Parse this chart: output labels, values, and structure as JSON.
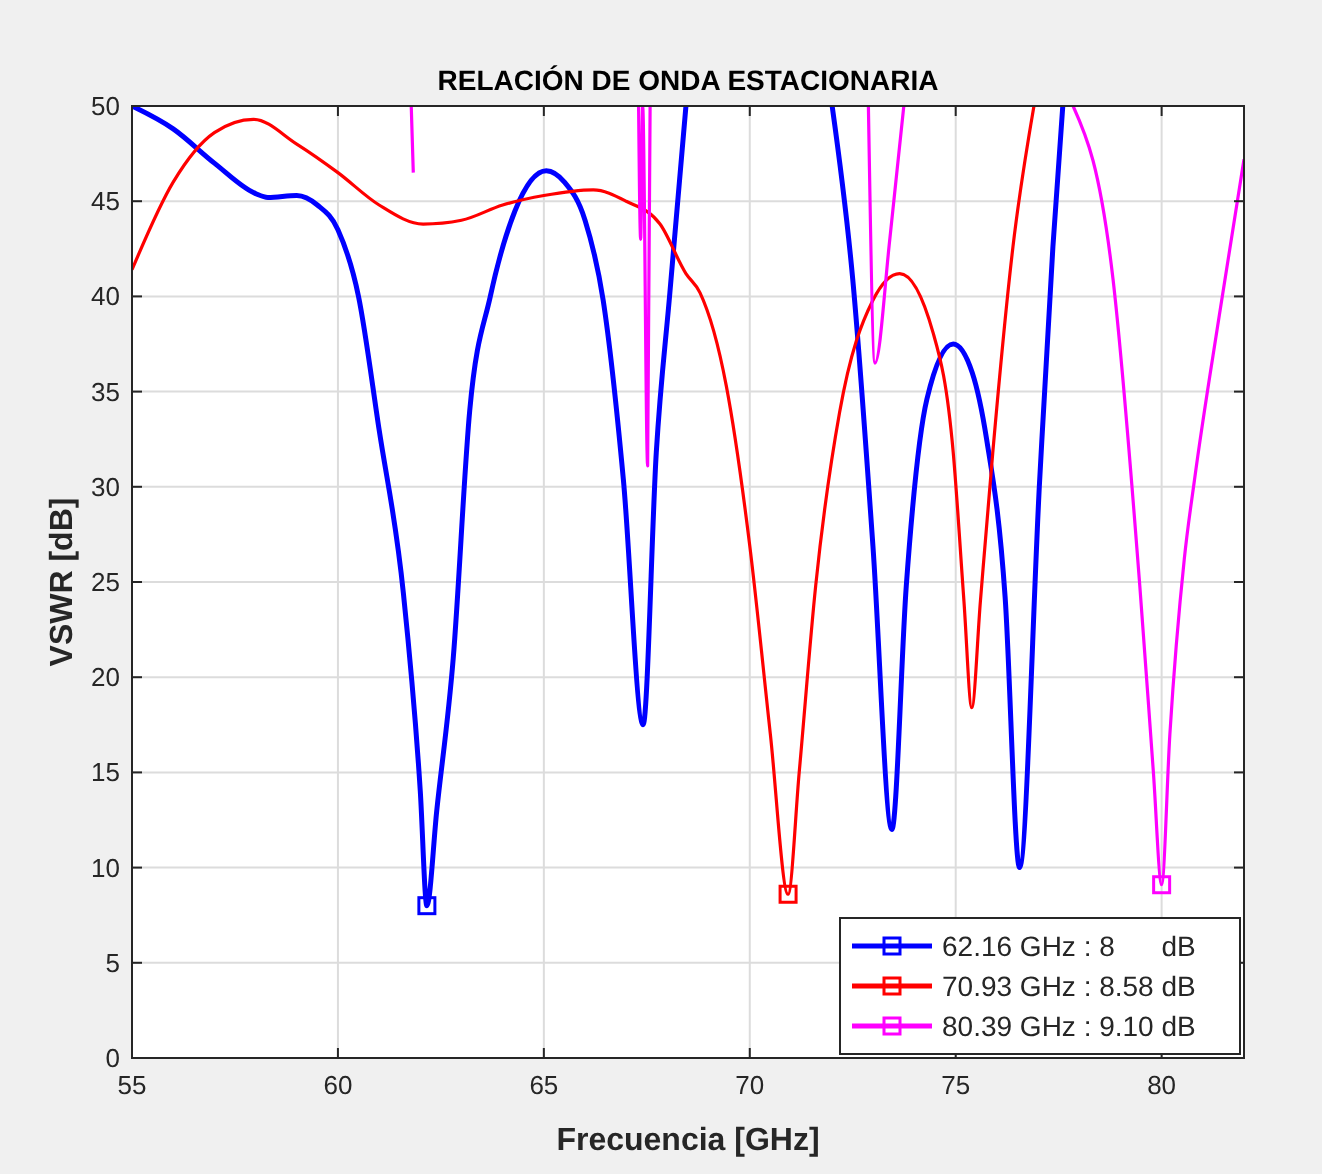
{
  "chart_data": {
    "type": "line",
    "title": "RELACIÓN DE ONDA ESTACIONARIA",
    "xlabel": "Frecuencia [GHz]",
    "ylabel": "VSWR [dB]",
    "xlim": [
      55,
      82
    ],
    "ylim": [
      0,
      50
    ],
    "xticks": [
      55,
      60,
      65,
      70,
      75,
      80
    ],
    "yticks": [
      0,
      5,
      10,
      15,
      20,
      25,
      30,
      35,
      40,
      45,
      50
    ],
    "grid": true,
    "legend": "bottom right",
    "series": [
      {
        "name": "62.16 GHz : 8      dB",
        "color": "#0000ff",
        "x": [
          55,
          56,
          57,
          58,
          58.3,
          59,
          59.5,
          60,
          60.5,
          61,
          61.59,
          62,
          62.16,
          62.4,
          62.8,
          63.2,
          63.7,
          64.3,
          65.06,
          65.5,
          66,
          66.44,
          66.93,
          67.41,
          67.73,
          68.06,
          68.45,
          null,
          72.0,
          72.5,
          72.99,
          73.45,
          73.8,
          74.3,
          74.94,
          75.4,
          75.75,
          76.2,
          76.55,
          77.04,
          77.36,
          77.6
        ],
        "values": [
          50,
          48.8,
          47,
          45.4,
          45.2,
          45.3,
          44.8,
          43.5,
          40,
          33,
          24.4,
          14,
          8,
          13,
          21,
          34,
          40,
          44.5,
          46.6,
          46,
          44,
          39.8,
          30.4,
          17.5,
          31.8,
          40.2,
          50,
          null,
          50,
          40.9,
          26.9,
          12,
          24.8,
          34.6,
          37.5,
          36,
          32.5,
          24.2,
          10,
          30.4,
          42.6,
          50
        ]
      },
      {
        "name": "70.93 GHz : 8.58 dB",
        "color": "#ff0000",
        "x": [
          55,
          56,
          57,
          57.95,
          59,
          60,
          61,
          62.07,
          63,
          64,
          65,
          66.2,
          67,
          67.82,
          68.45,
          68.79,
          69.43,
          70,
          70.5,
          70.93,
          71.2,
          71.6,
          72.18,
          72.99,
          73.64,
          74.45,
          74.94,
          75.2,
          75.39,
          75.6,
          75.9,
          76.39,
          76.9
        ],
        "values": [
          41.4,
          46,
          48.6,
          49.3,
          48,
          46.5,
          44.8,
          43.8,
          44,
          44.8,
          45.3,
          45.6,
          45,
          43.8,
          41.2,
          40.2,
          35.3,
          26.9,
          17,
          8.6,
          15,
          24.8,
          33.9,
          39.8,
          41.2,
          38.1,
          31.8,
          24,
          18.4,
          24,
          31.8,
          42.6,
          50
        ]
      },
      {
        "name": "80.39 GHz : 9.10 dB",
        "color": "#ff00ff",
        "x": [
          61.78,
          61.83,
          null,
          67.3,
          67.35,
          67.4,
          67.52,
          67.58,
          null,
          72.88,
          73.04,
          73.4,
          73.74,
          null,
          77.85,
          78.82,
          79.47,
          79.8,
          80,
          80.2,
          80.55,
          80.8,
          81.4,
          82
        ],
        "values": [
          50,
          46.5,
          null,
          50,
          43,
          50,
          31.1,
          50,
          null,
          50,
          36.5,
          43,
          50,
          null,
          50,
          40.9,
          24.8,
          15,
          9.1,
          17,
          26.2,
          30.4,
          39,
          47.2
        ]
      },
      {
        "type": "scatter",
        "marker": "square",
        "color": "#0000ff",
        "x": [
          62.16
        ],
        "values": [
          8
        ]
      },
      {
        "type": "scatter",
        "marker": "square",
        "color": "#ff0000",
        "x": [
          70.93
        ],
        "values": [
          8.6
        ]
      },
      {
        "type": "scatter",
        "marker": "square",
        "color": "#ff00ff",
        "x": [
          80
        ],
        "values": [
          9.1
        ]
      }
    ]
  }
}
